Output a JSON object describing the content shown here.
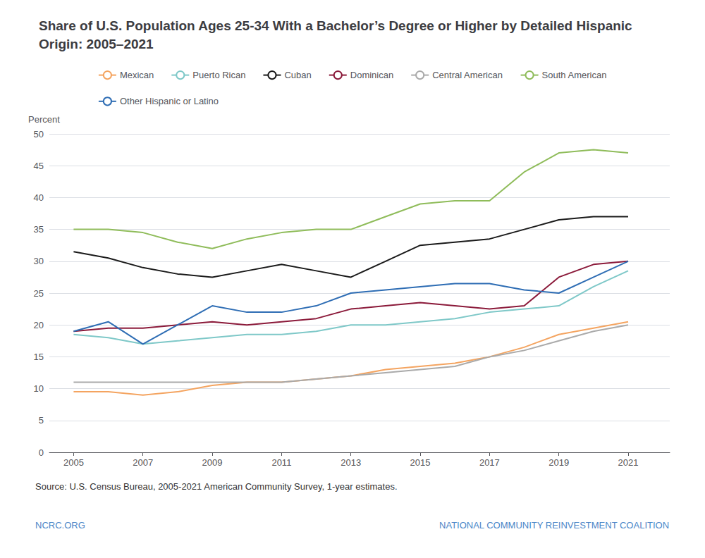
{
  "chart_data": {
    "type": "line",
    "title": "Share of U.S. Population Ages 25-34 With a Bachelor’s Degree or Higher by Detailed Hispanic Origin: 2005–2021",
    "y_label": "Percent",
    "x": [
      2005,
      2006,
      2007,
      2008,
      2009,
      2010,
      2011,
      2012,
      2013,
      2014,
      2015,
      2016,
      2017,
      2018,
      2019,
      2020,
      2021
    ],
    "series": [
      {
        "name": "Mexican",
        "color": "#f4a460",
        "values": [
          9.5,
          9.5,
          9.0,
          9.5,
          10.5,
          11.0,
          11.0,
          11.5,
          12.0,
          13.0,
          13.5,
          14.0,
          15.0,
          16.5,
          18.5,
          19.5,
          20.5
        ]
      },
      {
        "name": "Puerto Rican",
        "color": "#7ec8c8",
        "values": [
          18.5,
          18.0,
          17.0,
          17.5,
          18.0,
          18.5,
          18.5,
          19.0,
          20.0,
          20.0,
          20.5,
          21.0,
          22.0,
          22.5,
          23.0,
          26.0,
          28.5
        ]
      },
      {
        "name": "Cuban",
        "color": "#1a1a1a",
        "values": [
          31.5,
          30.5,
          29.0,
          28.0,
          27.5,
          28.5,
          29.5,
          28.5,
          27.5,
          30.0,
          32.5,
          33.0,
          33.5,
          35.0,
          36.5,
          37.0,
          37.0
        ]
      },
      {
        "name": "Dominican",
        "color": "#8b1a3a",
        "values": [
          19.0,
          19.5,
          19.5,
          20.0,
          20.5,
          20.0,
          20.5,
          21.0,
          22.5,
          23.0,
          23.5,
          23.0,
          22.5,
          23.0,
          27.5,
          29.5,
          30.0
        ]
      },
      {
        "name": "Central American",
        "color": "#aaaaaa",
        "values": [
          11.0,
          11.0,
          11.0,
          11.0,
          11.0,
          11.0,
          11.0,
          11.5,
          12.0,
          12.5,
          13.0,
          13.5,
          15.0,
          16.0,
          17.5,
          19.0,
          20.0
        ]
      },
      {
        "name": "South American",
        "color": "#8fbc5a",
        "values": [
          35.0,
          35.0,
          34.5,
          33.0,
          32.0,
          33.5,
          34.5,
          35.0,
          35.0,
          37.0,
          39.0,
          39.5,
          39.5,
          44.0,
          47.0,
          47.5,
          47.0
        ]
      },
      {
        "name": "Other Hispanic or Latino",
        "color": "#2e6db4",
        "values": [
          19.0,
          20.5,
          17.0,
          20.0,
          23.0,
          22.0,
          22.0,
          23.0,
          25.0,
          25.5,
          26.0,
          26.5,
          26.5,
          25.5,
          25.0,
          27.5,
          30.0
        ]
      }
    ],
    "xlim": [
      2004.3,
      2022.2
    ],
    "xticks": [
      2005,
      2007,
      2009,
      2011,
      2013,
      2015,
      2017,
      2019,
      2021
    ],
    "ylim": [
      0,
      50
    ],
    "yticks": [
      0,
      5,
      10,
      15,
      20,
      25,
      30,
      35,
      40,
      45,
      50
    ],
    "grid": true,
    "legend": "top",
    "annotations": [
      "Source: U.S. Census Bureau, 2005-2021 American Community Survey, 1-year estimates.",
      "NCRC.ORG",
      "NATIONAL COMMUNITY REINVESTMENT COALITION"
    ]
  }
}
